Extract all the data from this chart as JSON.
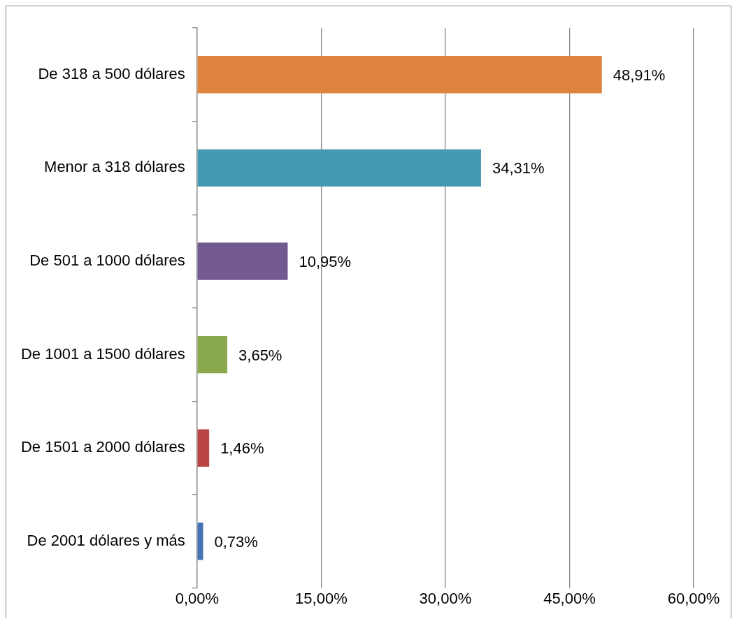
{
  "chart_data": {
    "type": "bar",
    "orientation": "horizontal",
    "categories": [
      "De 318 a 500 dólares",
      "Menor a 318 dólares",
      "De 501 a 1000 dólares",
      "De 1001 a 1500 dólares",
      "De 1501 a 2000 dólares",
      "De 2001 dólares y más"
    ],
    "values": [
      48.91,
      34.31,
      10.95,
      3.65,
      1.46,
      0.73
    ],
    "colors": [
      "#de843f",
      "#4599b3",
      "#725a91",
      "#8aa94f",
      "#b94542",
      "#4673b4"
    ],
    "value_labels": [
      "48,91%",
      "34,31%",
      "10,95%",
      "3,65%",
      "1,46%",
      "0,73%"
    ],
    "xlim": [
      0,
      60
    ],
    "xticks": [
      {
        "value": 0,
        "label": "0,00%"
      },
      {
        "value": 15,
        "label": "15,00%"
      },
      {
        "value": 30,
        "label": "30,00%"
      },
      {
        "value": 45,
        "label": "45,00%"
      },
      {
        "value": 60,
        "label": "60,00%"
      }
    ],
    "grid": "x",
    "legend": false
  }
}
